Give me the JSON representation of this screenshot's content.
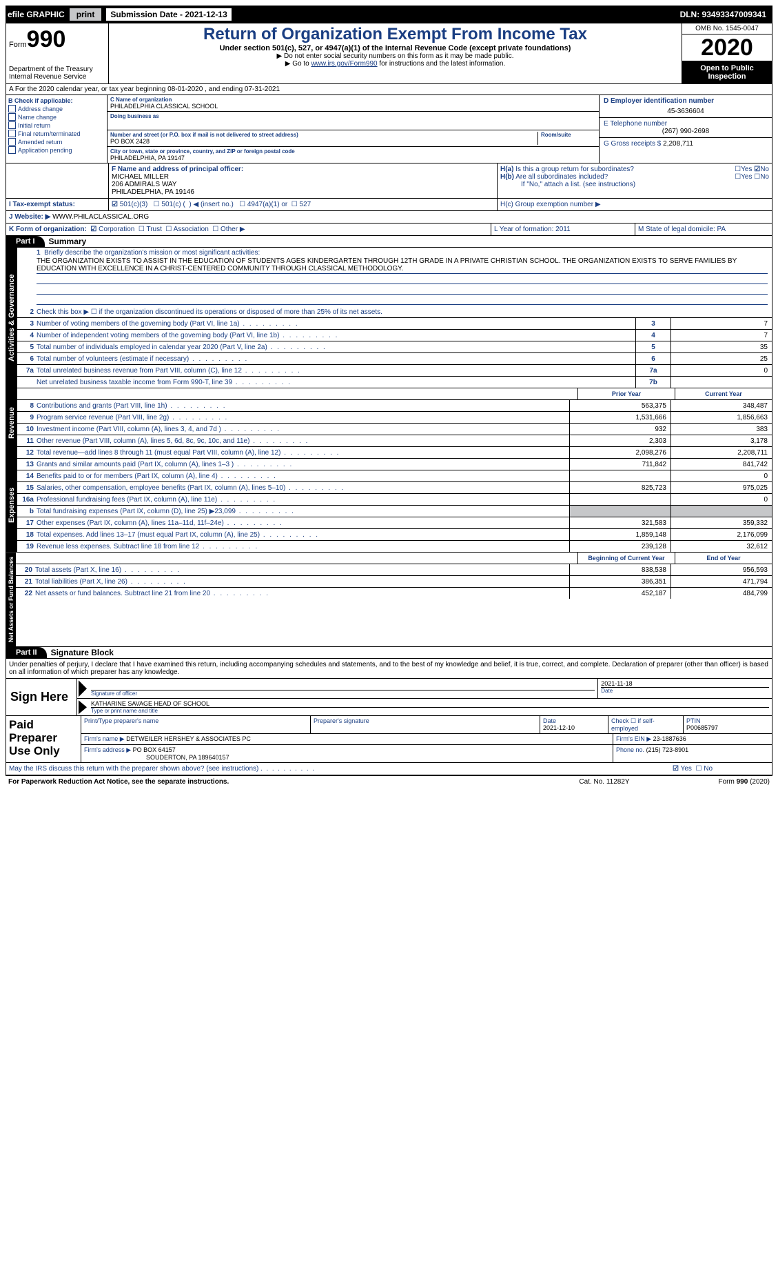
{
  "topbar": {
    "efile": "efile GRAPHIC",
    "print": "print",
    "subdate_label": "Submission Date - 2021-12-13",
    "dln": "DLN: 93493347009341"
  },
  "header": {
    "form_label": "Form",
    "form_num": "990",
    "dept": "Department of the Treasury Internal Revenue Service",
    "title": "Return of Organization Exempt From Income Tax",
    "subtitle": "Under section 501(c), 527, or 4947(a)(1) of the Internal Revenue Code (except private foundations)",
    "line1": "▶ Do not enter social security numbers on this form as it may be made public.",
    "line2_pre": "▶ Go to ",
    "line2_link": "www.irs.gov/Form990",
    "line2_post": " for instructions and the latest information.",
    "omb": "OMB No. 1545-0047",
    "year": "2020",
    "inspection": "Open to Public Inspection"
  },
  "row_a": "A For the 2020 calendar year, or tax year beginning 08-01-2020    , and ending 07-31-2021",
  "box_b": {
    "title": "B Check if applicable:",
    "items": [
      "Address change",
      "Name change",
      "Initial return",
      "Final return/terminated",
      "Amended return",
      "Application pending"
    ]
  },
  "box_c": {
    "name_label": "C Name of organization",
    "name": "PHILADELPHIA CLASSICAL SCHOOL",
    "dba_label": "Doing business as",
    "street_label": "Number and street (or P.O. box if mail is not delivered to street address)",
    "room_label": "Room/suite",
    "street": "PO BOX 2428",
    "city_label": "City or town, state or province, country, and ZIP or foreign postal code",
    "city": "PHILADELPHIA, PA  19147"
  },
  "box_d": {
    "ein_label": "D Employer identification number",
    "ein": "45-3636604",
    "tel_label": "E Telephone number",
    "tel": "(267) 990-2698",
    "gross_label": "G Gross receipts $",
    "gross": "2,208,711"
  },
  "box_f": {
    "label": "F  Name and address of principal officer:",
    "name": "MICHAEL MILLER",
    "addr1": "206 ADMIRALS WAY",
    "addr2": "PHILADELPHIA, PA  19146"
  },
  "box_h": {
    "ha": "H(a)  Is this a group return for subordinates?",
    "hb": "H(b)  Are all subordinates included?",
    "hb_note": "If \"No,\" attach a list. (see instructions)",
    "hc": "H(c)  Group exemption number ▶"
  },
  "row_i": {
    "label": "I  Tax-exempt status:",
    "opts": [
      "501(c)(3)",
      "501(c) (   ) ◀ (insert no.)",
      "4947(a)(1) or",
      "527"
    ]
  },
  "row_j": {
    "label": "J  Website: ▶",
    "value": "WWW.PHILACLASSICAL.ORG"
  },
  "row_k": {
    "label": "K Form of organization:",
    "opts": [
      "Corporation",
      "Trust",
      "Association",
      "Other ▶"
    ]
  },
  "row_l": {
    "l": "L Year of formation: 2011",
    "m": "M State of legal domicile: PA"
  },
  "part1": {
    "hdr": "Part I",
    "title": "Summary",
    "tab_ag": "Activities & Governance",
    "tab_rev": "Revenue",
    "tab_exp": "Expenses",
    "tab_net": "Net Assets or Fund Balances",
    "line1_label": "Briefly describe the organization's mission or most significant activities:",
    "mission": "THE ORGANIZATION EXISTS TO ASSIST IN THE EDUCATION OF STUDENTS AGES KINDERGARTEN THROUGH 12TH GRADE IN A PRIVATE CHRISTIAN SCHOOL. THE ORGANIZATION EXISTS TO SERVE FAMILIES BY EDUCATION WITH EXCELLENCE IN A CHRIST-CENTERED COMMUNITY THROUGH CLASSICAL METHODOLOGY.",
    "line2": "Check this box ▶ ☐ if the organization discontinued its operations or disposed of more than 25% of its net assets.",
    "lines_ag": [
      {
        "n": "3",
        "t": "Number of voting members of the governing body (Part VI, line 1a)",
        "c": "3",
        "v": "7"
      },
      {
        "n": "4",
        "t": "Number of independent voting members of the governing body (Part VI, line 1b)",
        "c": "4",
        "v": "7"
      },
      {
        "n": "5",
        "t": "Total number of individuals employed in calendar year 2020 (Part V, line 2a)",
        "c": "5",
        "v": "35"
      },
      {
        "n": "6",
        "t": "Total number of volunteers (estimate if necessary)",
        "c": "6",
        "v": "25"
      },
      {
        "n": "7a",
        "t": "Total unrelated business revenue from Part VIII, column (C), line 12",
        "c": "7a",
        "v": "0"
      },
      {
        "n": "",
        "t": "Net unrelated business taxable income from Form 990-T, line 39",
        "c": "7b",
        "v": ""
      }
    ],
    "col_prior": "Prior Year",
    "col_curr": "Current Year",
    "lines_rev": [
      {
        "n": "8",
        "t": "Contributions and grants (Part VIII, line 1h)",
        "p": "563,375",
        "c": "348,487"
      },
      {
        "n": "9",
        "t": "Program service revenue (Part VIII, line 2g)",
        "p": "1,531,666",
        "c": "1,856,663"
      },
      {
        "n": "10",
        "t": "Investment income (Part VIII, column (A), lines 3, 4, and 7d )",
        "p": "932",
        "c": "383"
      },
      {
        "n": "11",
        "t": "Other revenue (Part VIII, column (A), lines 5, 6d, 8c, 9c, 10c, and 11e)",
        "p": "2,303",
        "c": "3,178"
      },
      {
        "n": "12",
        "t": "Total revenue—add lines 8 through 11 (must equal Part VIII, column (A), line 12)",
        "p": "2,098,276",
        "c": "2,208,711"
      }
    ],
    "lines_exp": [
      {
        "n": "13",
        "t": "Grants and similar amounts paid (Part IX, column (A), lines 1–3 )",
        "p": "711,842",
        "c": "841,742"
      },
      {
        "n": "14",
        "t": "Benefits paid to or for members (Part IX, column (A), line 4)",
        "p": "",
        "c": "0"
      },
      {
        "n": "15",
        "t": "Salaries, other compensation, employee benefits (Part IX, column (A), lines 5–10)",
        "p": "825,723",
        "c": "975,025"
      },
      {
        "n": "16a",
        "t": "Professional fundraising fees (Part IX, column (A), line 11e)",
        "p": "",
        "c": "0"
      },
      {
        "n": "b",
        "t": "Total fundraising expenses (Part IX, column (D), line 25) ▶23,099",
        "p": "grey",
        "c": "grey"
      },
      {
        "n": "17",
        "t": "Other expenses (Part IX, column (A), lines 11a–11d, 11f–24e)",
        "p": "321,583",
        "c": "359,332"
      },
      {
        "n": "18",
        "t": "Total expenses. Add lines 13–17 (must equal Part IX, column (A), line 25)",
        "p": "1,859,148",
        "c": "2,176,099"
      },
      {
        "n": "19",
        "t": "Revenue less expenses. Subtract line 18 from line 12",
        "p": "239,128",
        "c": "32,612"
      }
    ],
    "col_begin": "Beginning of Current Year",
    "col_end": "End of Year",
    "lines_net": [
      {
        "n": "20",
        "t": "Total assets (Part X, line 16)",
        "p": "838,538",
        "c": "956,593"
      },
      {
        "n": "21",
        "t": "Total liabilities (Part X, line 26)",
        "p": "386,351",
        "c": "471,794"
      },
      {
        "n": "22",
        "t": "Net assets or fund balances. Subtract line 21 from line 20",
        "p": "452,187",
        "c": "484,799"
      }
    ]
  },
  "part2": {
    "hdr": "Part II",
    "title": "Signature Block",
    "decl": "Under penalties of perjury, I declare that I have examined this return, including accompanying schedules and statements, and to the best of my knowledge and belief, it is true, correct, and complete. Declaration of preparer (other than officer) is based on all information of which preparer has any knowledge.",
    "sign_here": "Sign Here",
    "sig_date": "2021-11-18",
    "sig_of_officer": "Signature of officer",
    "sig_date_lbl": "Date",
    "officer_name": "KATHARINE SAVAGE  HEAD OF SCHOOL",
    "officer_caption": "Type or print name and title",
    "paid": "Paid Preparer Use Only",
    "prep_name_lbl": "Print/Type preparer's name",
    "prep_sig_lbl": "Preparer's signature",
    "prep_date_lbl": "Date",
    "prep_date": "2021-12-10",
    "prep_check": "Check ☐ if self-employed",
    "ptin_lbl": "PTIN",
    "ptin": "P00685797",
    "firm_name_lbl": "Firm's name    ▶",
    "firm_name": "DETWEILER HERSHEY & ASSOCIATES PC",
    "firm_ein_lbl": "Firm's EIN ▶",
    "firm_ein": "23-1887636",
    "firm_addr_lbl": "Firm's address ▶",
    "firm_addr1": "PO BOX 64157",
    "firm_addr2": "SOUDERTON, PA  189640157",
    "firm_phone_lbl": "Phone no.",
    "firm_phone": "(215) 723-8901",
    "discuss": "May the IRS discuss this return with the preparer shown above? (see instructions)",
    "yes": "Yes",
    "no": "No"
  },
  "footer": {
    "pra": "For Paperwork Reduction Act Notice, see the separate instructions.",
    "cat": "Cat. No. 11282Y",
    "form": "Form 990 (2020)"
  }
}
